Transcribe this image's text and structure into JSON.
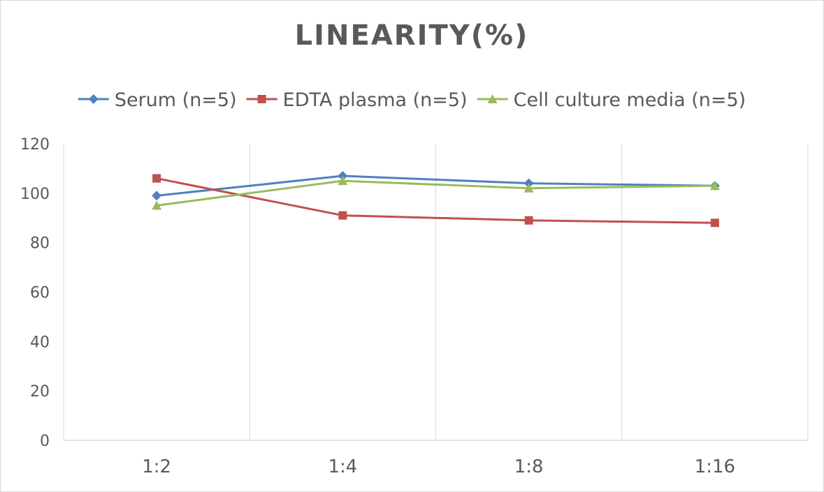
{
  "chart_data": {
    "type": "line",
    "title": "LINEARITY(%)",
    "xlabel": "",
    "ylabel": "",
    "categories": [
      "1:2",
      "1:4",
      "1:8",
      "1:16"
    ],
    "ylim": [
      0,
      120
    ],
    "yticks": [
      0,
      20,
      40,
      60,
      80,
      100,
      120
    ],
    "grid": "vertical",
    "legend_position": "top",
    "series": [
      {
        "name": "Serum (n=5)",
        "values": [
          99,
          107,
          104,
          103
        ],
        "color": "#4f81bd",
        "marker": "diamond"
      },
      {
        "name": "EDTA plasma (n=5)",
        "values": [
          106,
          91,
          89,
          88
        ],
        "color": "#c0504d",
        "marker": "square"
      },
      {
        "name": "Cell culture media (n=5)",
        "values": [
          95,
          105,
          102,
          103
        ],
        "color": "#9bbb59",
        "marker": "triangle"
      }
    ]
  }
}
